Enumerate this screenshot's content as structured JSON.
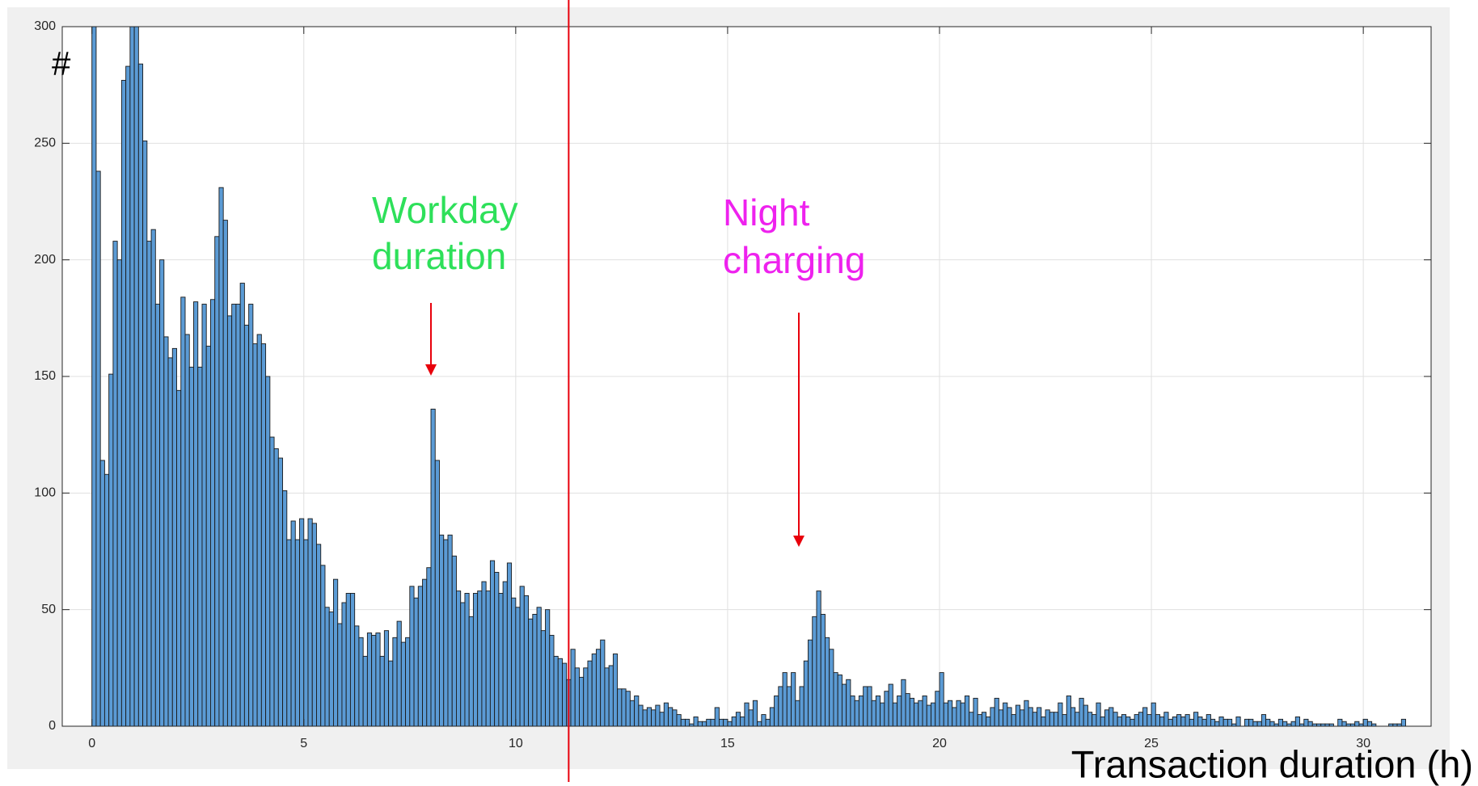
{
  "chart_data": {
    "type": "histogram",
    "y_label": "#",
    "x_label": "Transaction duration  (h)",
    "xlim": [
      -0.7,
      31.6
    ],
    "ylim": [
      0,
      300
    ],
    "xticks": [
      0,
      5,
      10,
      15,
      20,
      25,
      30
    ],
    "yticks": [
      0,
      50,
      100,
      150,
      200,
      250,
      300
    ],
    "grid": true,
    "color": "#5b9bd5",
    "edge_color": "#1a1a1a",
    "vlines": [
      {
        "value": 11.25,
        "color": "#e8000b"
      }
    ],
    "annotations": [
      {
        "text": [
          "Workday",
          "duration"
        ],
        "color": "#2ee05a"
      },
      {
        "text": [
          "Night",
          "charging"
        ],
        "color": "#ee22ee"
      }
    ],
    "arrow_color": "#e8000b",
    "bins": [
      0,
      0.1,
      0.2,
      0.3,
      0.4,
      0.5,
      0.6,
      0.7,
      0.8,
      0.9,
      1,
      1.1,
      1.2,
      1.3,
      1.4,
      1.5,
      1.6,
      1.7,
      1.8,
      1.9,
      2,
      2.1,
      2.2,
      2.3,
      2.4,
      2.5,
      2.6,
      2.7,
      2.8,
      2.9,
      3,
      3.1,
      3.2,
      3.3,
      3.4,
      3.5,
      3.6,
      3.7,
      3.8,
      3.9,
      4,
      4.1,
      4.2,
      4.3,
      4.4,
      4.5,
      4.6,
      4.7,
      4.8,
      4.9,
      5,
      5.1,
      5.2,
      5.3,
      5.4,
      5.5,
      5.6,
      5.7,
      5.8,
      5.9,
      6,
      6.1,
      6.2,
      6.3,
      6.4,
      6.5,
      6.6,
      6.7,
      6.8,
      6.9,
      7,
      7.1,
      7.2,
      7.3,
      7.4,
      7.5,
      7.6,
      7.7,
      7.8,
      7.9,
      8,
      8.1,
      8.2,
      8.3,
      8.4,
      8.5,
      8.6,
      8.7,
      8.8,
      8.9,
      9,
      9.1,
      9.2,
      9.3,
      9.4,
      9.5,
      9.6,
      9.7,
      9.8,
      9.9,
      10,
      10.1,
      10.2,
      10.3,
      10.4,
      10.5,
      10.6,
      10.7,
      10.8,
      10.9,
      11,
      11.1,
      11.2,
      11.3,
      11.4,
      11.5,
      11.6,
      11.7,
      11.8,
      11.9,
      12,
      12.1,
      12.2,
      12.3,
      12.4,
      12.5,
      12.6,
      12.7,
      12.8,
      12.9,
      13,
      13.1,
      13.2,
      13.3,
      13.4,
      13.5,
      13.6,
      13.7,
      13.8,
      13.9,
      14,
      14.1,
      14.2,
      14.3,
      14.4,
      14.5,
      14.6,
      14.7,
      14.8,
      14.9,
      15,
      15.1,
      15.2,
      15.3,
      15.4,
      15.5,
      15.6,
      15.7,
      15.8,
      15.9,
      16,
      16.1,
      16.2,
      16.3,
      16.4,
      16.5,
      16.6,
      16.7,
      16.8,
      16.9,
      17,
      17.1,
      17.2,
      17.3,
      17.4,
      17.5,
      17.6,
      17.7,
      17.8,
      17.9,
      18,
      18.1,
      18.2,
      18.3,
      18.4,
      18.5,
      18.6,
      18.7,
      18.8,
      18.9,
      19,
      19.1,
      19.2,
      19.3,
      19.4,
      19.5,
      19.6,
      19.7,
      19.8,
      19.9,
      20,
      20.1,
      20.2,
      20.3,
      20.4,
      20.5,
      20.6,
      20.7,
      20.8,
      20.9,
      21,
      21.1,
      21.2,
      21.3,
      21.4,
      21.5,
      21.6,
      21.7,
      21.8,
      21.9,
      22,
      22.1,
      22.2,
      22.3,
      22.4,
      22.5,
      22.6,
      22.7,
      22.8,
      22.9,
      23,
      23.1,
      23.2,
      23.3,
      23.4,
      23.5,
      23.6,
      23.7,
      23.8,
      23.9,
      24,
      24.1,
      24.2,
      24.3,
      24.4,
      24.5,
      24.6,
      24.7,
      24.8,
      24.9,
      25,
      25.1,
      25.2,
      25.3,
      25.4,
      25.5,
      25.6,
      25.7,
      25.8,
      25.9,
      26,
      26.1,
      26.2,
      26.3,
      26.4,
      26.5,
      26.6,
      26.7,
      26.8,
      26.9,
      27,
      27.1,
      27.2,
      27.3,
      27.4,
      27.5,
      27.6,
      27.7,
      27.8,
      27.9,
      28,
      28.1,
      28.2,
      28.3,
      28.4,
      28.5,
      28.6,
      28.7,
      28.8,
      28.9,
      29,
      29.1,
      29.2,
      29.3,
      29.4,
      29.5,
      29.6,
      29.7,
      29.8,
      29.9,
      30,
      30.1,
      30.2,
      30.3,
      30.4,
      30.5,
      30.6,
      30.7,
      30.8,
      30.9,
      31
    ],
    "values": [
      305,
      238,
      114,
      108,
      151,
      208,
      200,
      277,
      283,
      305,
      305,
      284,
      251,
      208,
      213,
      181,
      200,
      167,
      158,
      162,
      144,
      184,
      168,
      154,
      182,
      154,
      181,
      163,
      183,
      210,
      231,
      217,
      176,
      181,
      181,
      190,
      172,
      181,
      164,
      168,
      164,
      150,
      124,
      119,
      115,
      101,
      80,
      88,
      80,
      89,
      80,
      89,
      87,
      78,
      69,
      51,
      49,
      63,
      44,
      53,
      57,
      57,
      43,
      38,
      30,
      40,
      39,
      40,
      30,
      41,
      28,
      38,
      45,
      36,
      38,
      60,
      55,
      60,
      63,
      68,
      136,
      114,
      82,
      80,
      82,
      73,
      58,
      53,
      57,
      47,
      57,
      58,
      62,
      58,
      71,
      66,
      57,
      62,
      70,
      55,
      51,
      60,
      56,
      46,
      48,
      51,
      41,
      50,
      39,
      30,
      29,
      27,
      20,
      33,
      25,
      21,
      25,
      28,
      31,
      33,
      37,
      25,
      26,
      31,
      16,
      16,
      15,
      11,
      13,
      9,
      7,
      8,
      7,
      9,
      6,
      10,
      8,
      7,
      5,
      3,
      3,
      1,
      4,
      2,
      2,
      3,
      3,
      8,
      3,
      3,
      2,
      4,
      6,
      4,
      10,
      7,
      11,
      2,
      5,
      3,
      8,
      13,
      17,
      23,
      17,
      23,
      11,
      17,
      28,
      37,
      47,
      58,
      48,
      38,
      33,
      23,
      22,
      18,
      20,
      13,
      11,
      13,
      17,
      17,
      11,
      13,
      10,
      15,
      18,
      10,
      13,
      20,
      14,
      12,
      10,
      11,
      13,
      9,
      10,
      15,
      23,
      10,
      11,
      8,
      11,
      10,
      13,
      6,
      12,
      5,
      6,
      4,
      8,
      12,
      7,
      10,
      8,
      5,
      9,
      7,
      11,
      8,
      6,
      8,
      4,
      7,
      6,
      6,
      10,
      5,
      13,
      8,
      6,
      12,
      9,
      6,
      5,
      10,
      4,
      7,
      8,
      6,
      4,
      5,
      4,
      3,
      5,
      6,
      8,
      5,
      10,
      5,
      4,
      6,
      3,
      4,
      5,
      4,
      5,
      3,
      6,
      4,
      3,
      5,
      3,
      2,
      4,
      3,
      3,
      1,
      4,
      0,
      3,
      3,
      2,
      2,
      5,
      3,
      2,
      1,
      3,
      2,
      1,
      2,
      4,
      1,
      3,
      2,
      1,
      1,
      1,
      1,
      1,
      0,
      3,
      2,
      1,
      1,
      2,
      1,
      3,
      2,
      1,
      0,
      0,
      0,
      1,
      1,
      1,
      3
    ]
  }
}
